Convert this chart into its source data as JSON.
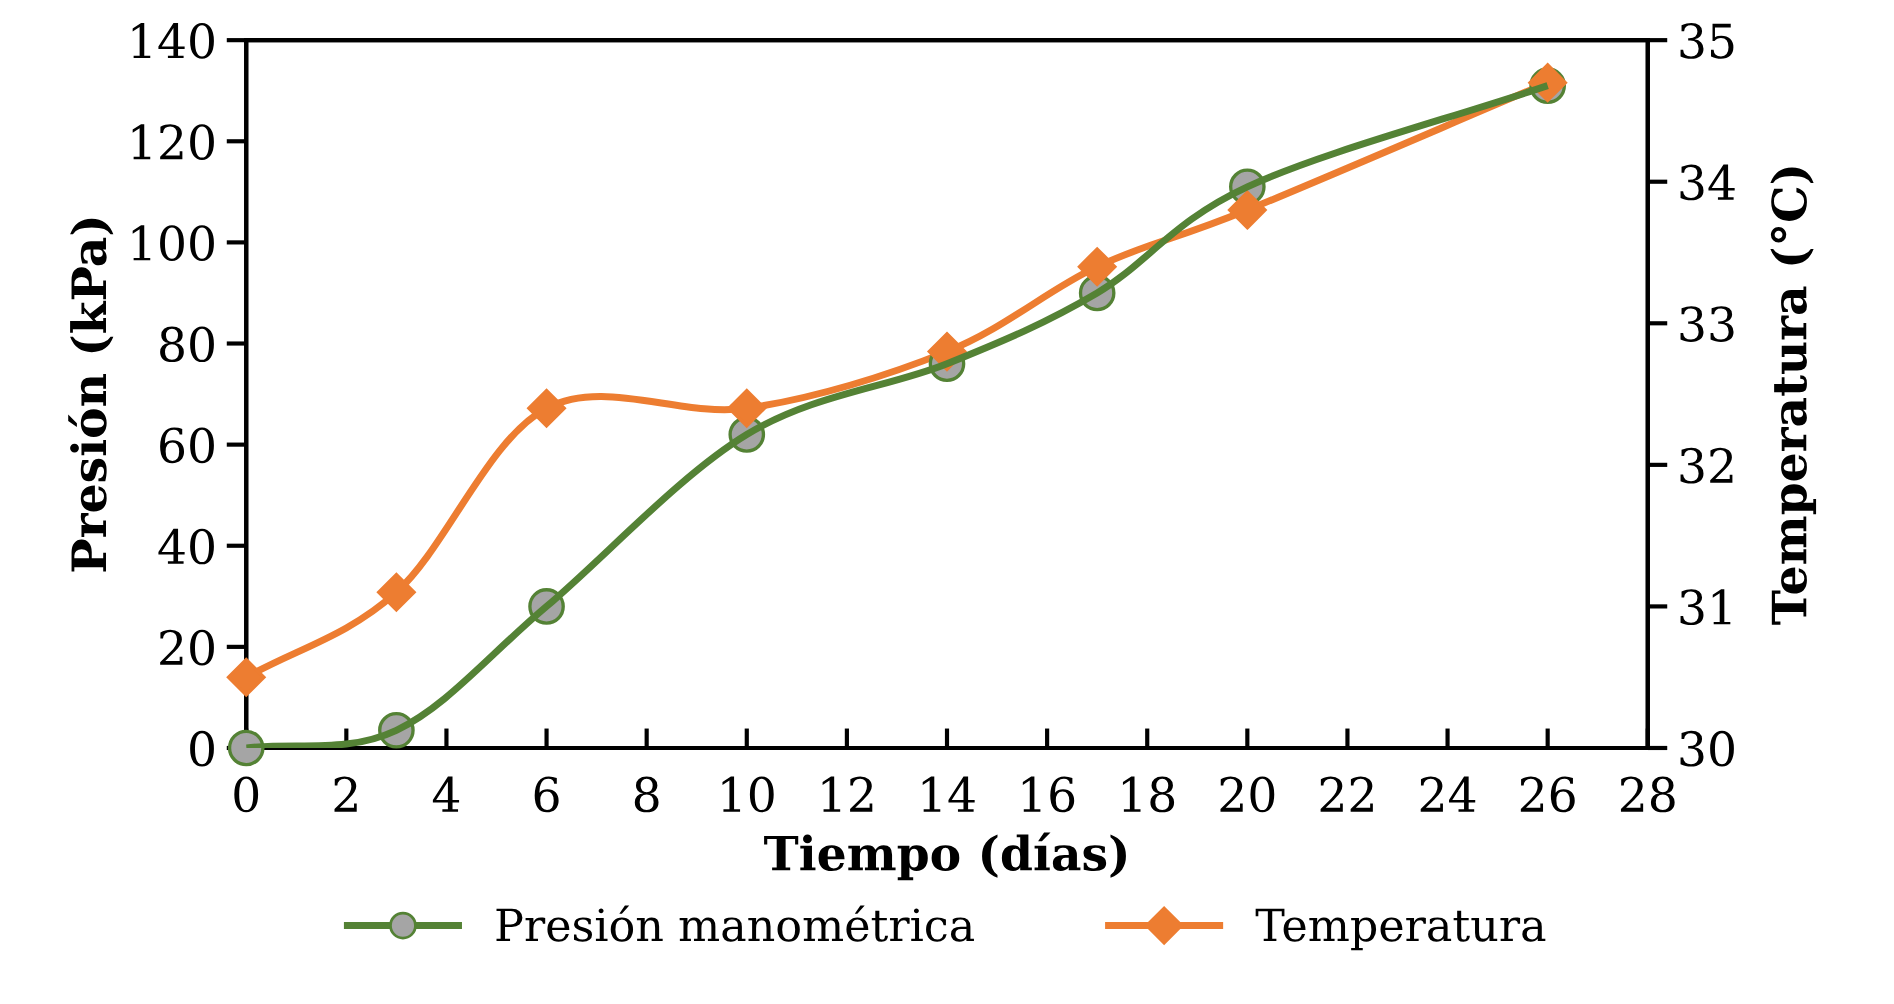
{
  "chart_data": {
    "type": "line",
    "xlabel": "Tiempo (días)",
    "ylabel": "Presión (kPa)",
    "y2label": "Temperatura (°C)",
    "x": [
      0,
      3,
      6,
      10,
      14,
      17,
      20,
      26
    ],
    "series": [
      {
        "name": "Presión manométrica",
        "color": "#548235",
        "marker": "circle",
        "values": [
          0,
          3.5,
          28,
          62,
          76,
          90,
          111,
          131
        ]
      },
      {
        "name": "Temperatura",
        "color": "#ed7d31",
        "marker": "diamond",
        "axis": "y2",
        "values": [
          30.5,
          31.1,
          32.4,
          32.4,
          32.8,
          33.4,
          33.8,
          34.7
        ]
      }
    ],
    "xlim": [
      0,
      28
    ],
    "xticks": [
      0,
      2,
      4,
      6,
      8,
      10,
      12,
      14,
      16,
      18,
      20,
      22,
      24,
      26,
      28
    ],
    "ylim": [
      0,
      140
    ],
    "yticks": [
      0,
      20,
      40,
      60,
      80,
      100,
      120,
      140
    ],
    "y2lim": [
      30,
      35
    ],
    "y2ticks": [
      30,
      31,
      32,
      33,
      34,
      35
    ],
    "grid": false,
    "legend": "bottom",
    "line_style": "solid"
  }
}
